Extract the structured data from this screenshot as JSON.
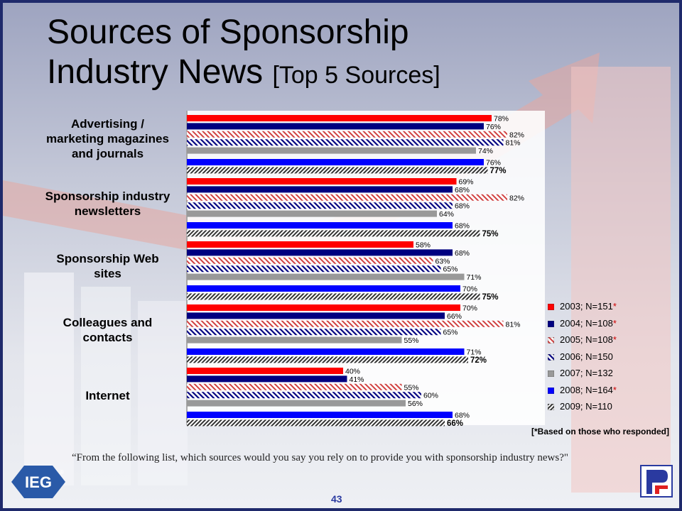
{
  "slide": {
    "title_main": "Sources of Sponsorship",
    "title_line2": "Industry News",
    "title_sub": "[Top 5 Sources]",
    "note": "[*Based on those who responded]",
    "question": "“From the following list, which sources would you say you rely on to provide you with sponsorship industry news?\"",
    "page_number": "43",
    "logo_left_text": "IEG",
    "logo_left_mark": "®"
  },
  "chart_data": {
    "type": "bar",
    "orientation": "horizontal",
    "categories": [
      "Advertising / marketing magazines and journals",
      "Sponsorship industry newsletters",
      "Sponsorship Web sites",
      "Colleagues and contacts",
      "Internet"
    ],
    "series": [
      {
        "name": "2003; N=151",
        "asterisk": "*",
        "color": "#ff0000",
        "pattern": "solid",
        "values": [
          78,
          69,
          58,
          70,
          40
        ],
        "labels": [
          "78%",
          "69%",
          "58%",
          "70%",
          "40%"
        ]
      },
      {
        "name": "2004; N=108",
        "asterisk": "*",
        "color": "#000080",
        "pattern": "solid",
        "values": [
          76,
          68,
          68,
          66,
          41
        ],
        "labels": [
          "76%",
          "68%",
          "68%",
          "66%",
          "41%"
        ]
      },
      {
        "name": "2005; N=108",
        "asterisk": "*",
        "color": "#e05050",
        "pattern": "hatch-red",
        "values": [
          82,
          82,
          63,
          81,
          55
        ],
        "labels": [
          "82%",
          "82%",
          "63%",
          "81%",
          "55%"
        ]
      },
      {
        "name": "2006; N=150",
        "asterisk": "",
        "color": "#000080",
        "pattern": "hatch-navy",
        "values": [
          81,
          68,
          65,
          65,
          60
        ],
        "labels": [
          "81%",
          "68%",
          "65%",
          "65%",
          "60%"
        ]
      },
      {
        "name": "2007; N=132",
        "asterisk": "",
        "color": "#999999",
        "pattern": "solid",
        "values": [
          74,
          64,
          71,
          55,
          56
        ],
        "labels": [
          "74%",
          "64%",
          "71%",
          "55%",
          "56%"
        ]
      },
      {
        "name": "2008; N=164",
        "asterisk": "*",
        "color": "#0000ff",
        "pattern": "solid",
        "values": [
          76,
          68,
          70,
          71,
          68
        ],
        "labels": [
          "76%",
          "68%",
          "70%",
          "71%",
          "68%"
        ]
      },
      {
        "name": "2009; N=110",
        "asterisk": "",
        "color": "#555555",
        "pattern": "hatch-dark",
        "values": [
          77,
          75,
          75,
          72,
          66
        ],
        "labels": [
          "77%",
          "75%",
          "75%",
          "72%",
          "66%"
        ]
      }
    ],
    "xlim": [
      0,
      100
    ],
    "legend_position": "right",
    "grid": false
  }
}
